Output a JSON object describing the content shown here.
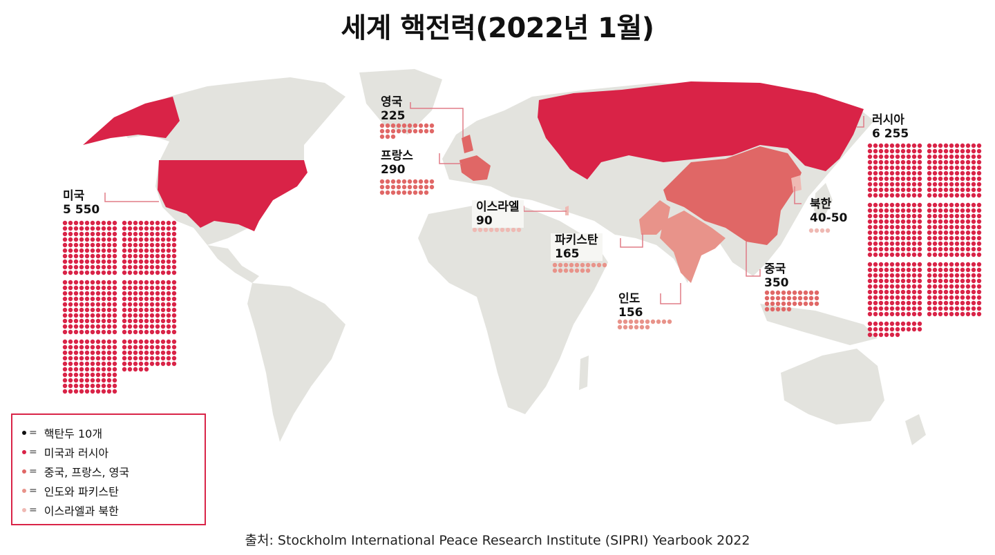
{
  "title": "세계 핵전력(2022년 1월)",
  "source": "출처: Stockholm International Peace Research Institute (SIPRI) Yearbook 2022",
  "colors": {
    "land": "#e3e3de",
    "tier1": "#d92347",
    "tier2": "#e06766",
    "tier3": "#e8938a",
    "tier4": "#efb9b3",
    "leader_line": "#e07b86",
    "legend_border": "#d92347"
  },
  "countries": [
    {
      "id": "usa",
      "name": "미국",
      "warheads": "5 550",
      "dots": 555,
      "tier": "tier1"
    },
    {
      "id": "russia",
      "name": "러시아",
      "warheads": "6 255",
      "dots": 626,
      "tier": "tier1"
    },
    {
      "id": "uk",
      "name": "영국",
      "warheads": "225",
      "dots": 23,
      "tier": "tier2"
    },
    {
      "id": "france",
      "name": "프랑스",
      "warheads": "290",
      "dots": 29,
      "tier": "tier2"
    },
    {
      "id": "israel",
      "name": "이스라엘",
      "warheads": "90",
      "dots": 9,
      "tier": "tier4"
    },
    {
      "id": "pakistan",
      "name": "파키스탄",
      "warheads": "165",
      "dots": 17,
      "tier": "tier3"
    },
    {
      "id": "india",
      "name": "인도",
      "warheads": "156",
      "dots": 16,
      "tier": "tier3"
    },
    {
      "id": "china",
      "name": "중국",
      "warheads": "350",
      "dots": 35,
      "tier": "tier2"
    },
    {
      "id": "nkorea",
      "name": "북한",
      "warheads": "40-50",
      "dots": 4,
      "tier": "tier4"
    }
  ],
  "legend": [
    {
      "label": "핵탄두 10개",
      "color": "#111111"
    },
    {
      "label": "미국과 러시아",
      "color": "#d92347"
    },
    {
      "label": "중국, 프랑스, 영국",
      "color": "#e06766"
    },
    {
      "label": "인도와 파키스탄",
      "color": "#e8938a"
    },
    {
      "label": "이스라엘과 북한",
      "color": "#efb9b3"
    }
  ],
  "legend_symbol": "="
}
